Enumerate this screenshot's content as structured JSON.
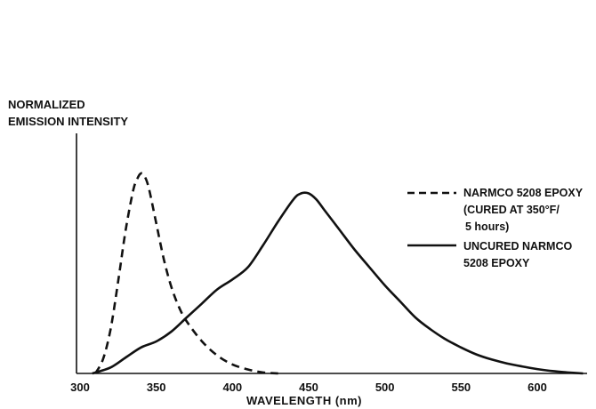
{
  "chart_data": {
    "type": "line",
    "ylabel_lines": [
      "NORMALIZED",
      "EMISSION INTENSITY"
    ],
    "xlabel": "WAVELENGTH (nm)",
    "xlim": [
      290,
      632
    ],
    "ylim": [
      0,
      1.0
    ],
    "xticks": [
      300,
      350,
      400,
      450,
      500,
      550,
      600
    ],
    "grid": false,
    "legend_position": "right",
    "series": [
      {
        "name_lines": [
          "NARMCO 5208 EPOXY",
          "(CURED AT 350°F/",
          "5 hours)"
        ],
        "style": "dashed",
        "x": [
          310,
          315,
          320,
          325,
          330,
          335,
          338,
          340,
          342,
          345,
          350,
          355,
          360,
          365,
          370,
          380,
          390,
          400,
          410,
          420,
          430
        ],
        "y": [
          0.0,
          0.07,
          0.22,
          0.46,
          0.72,
          0.92,
          0.98,
          1.0,
          0.99,
          0.93,
          0.75,
          0.57,
          0.43,
          0.33,
          0.26,
          0.16,
          0.09,
          0.045,
          0.02,
          0.005,
          0.0
        ]
      },
      {
        "name_lines": [
          "UNCURED NARMCO",
          "5208 EPOXY"
        ],
        "style": "solid",
        "x": [
          308,
          320,
          330,
          340,
          350,
          360,
          370,
          380,
          390,
          400,
          410,
          420,
          430,
          440,
          445,
          450,
          455,
          460,
          470,
          480,
          490,
          500,
          510,
          520,
          530,
          540,
          550,
          560,
          570,
          580,
          590,
          600,
          610,
          620,
          630
        ],
        "y": [
          0.0,
          0.03,
          0.08,
          0.13,
          0.16,
          0.21,
          0.28,
          0.35,
          0.42,
          0.47,
          0.53,
          0.64,
          0.76,
          0.87,
          0.9,
          0.9,
          0.87,
          0.82,
          0.72,
          0.62,
          0.53,
          0.44,
          0.36,
          0.28,
          0.22,
          0.17,
          0.13,
          0.095,
          0.07,
          0.05,
          0.035,
          0.022,
          0.012,
          0.005,
          0.0
        ]
      }
    ]
  }
}
